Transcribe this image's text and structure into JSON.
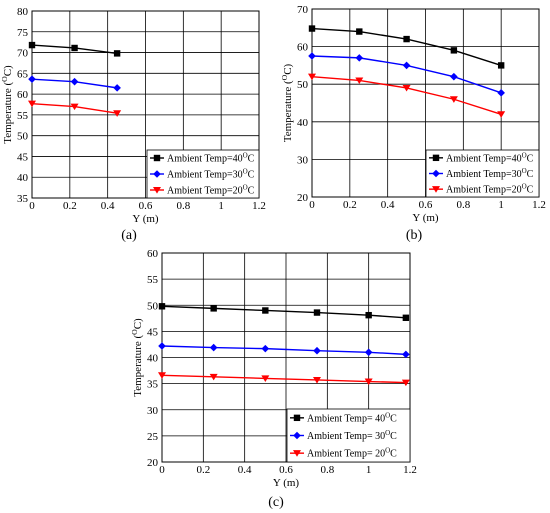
{
  "chart_data": [
    {
      "type": "line",
      "panel_label": "(a)",
      "xlabel": "Y (m)",
      "ylabel": "Temperature (°C)",
      "xlim": [
        0,
        1.2
      ],
      "ylim": [
        35,
        80
      ],
      "xticks": [
        0,
        0.2,
        0.4,
        0.6,
        0.8,
        1,
        1.2
      ],
      "yticks": [
        35,
        40,
        45,
        50,
        55,
        60,
        65,
        70,
        75,
        80
      ],
      "xtick_labels": [
        "0",
        "0.2",
        "0.4",
        "0.6",
        "0.8",
        "1",
        "1.2"
      ],
      "ytick_labels": [
        "35",
        "40",
        "45",
        "50",
        "55",
        "60",
        "65",
        "70",
        "75",
        "80"
      ],
      "grid": true,
      "legend_position": "bottom-right",
      "series": [
        {
          "name": "Ambient Temp=40°C",
          "color": "#000000",
          "marker": "square",
          "x": [
            0,
            0.225,
            0.45
          ],
          "values": [
            71.8,
            71.1,
            69.8
          ]
        },
        {
          "name": "Ambient Temp=30°C",
          "color": "#0000ff",
          "marker": "diamond",
          "x": [
            0,
            0.225,
            0.45
          ],
          "values": [
            63.6,
            63.0,
            61.5
          ]
        },
        {
          "name": "Ambient Temp=20°C",
          "color": "#ff0000",
          "marker": "triangle-down",
          "x": [
            0,
            0.225,
            0.45
          ],
          "values": [
            57.7,
            57.0,
            55.4
          ]
        }
      ]
    },
    {
      "type": "line",
      "panel_label": "(b)",
      "xlabel": "Y (m)",
      "ylabel": "Temperature (°C)",
      "xlim": [
        0,
        1.2
      ],
      "ylim": [
        20,
        70
      ],
      "xticks": [
        0,
        0.2,
        0.4,
        0.6,
        0.8,
        1,
        1.2
      ],
      "yticks": [
        20,
        30,
        40,
        50,
        60,
        70
      ],
      "xtick_labels": [
        "0",
        "0.2",
        "0.4",
        "0.6",
        "0.8",
        "1",
        "1.2"
      ],
      "ytick_labels": [
        "20",
        "30",
        "40",
        "50",
        "60",
        "70"
      ],
      "grid": true,
      "legend_position": "bottom-right",
      "series": [
        {
          "name": "Ambient Temp=40°C",
          "color": "#000000",
          "marker": "square",
          "x": [
            0,
            0.25,
            0.5,
            0.75,
            1.0
          ],
          "values": [
            64.8,
            64.0,
            62.0,
            59.0,
            55.0
          ]
        },
        {
          "name": "Ambient Temp=30°C",
          "color": "#0000ff",
          "marker": "diamond",
          "x": [
            0,
            0.25,
            0.5,
            0.75,
            1.0
          ],
          "values": [
            57.5,
            57.0,
            55.0,
            52.0,
            47.7
          ]
        },
        {
          "name": "Ambient Temp=20°C",
          "color": "#ff0000",
          "marker": "triangle-down",
          "x": [
            0,
            0.25,
            0.5,
            0.75,
            1.0
          ],
          "values": [
            52.0,
            51.0,
            49.0,
            46.0,
            42.0
          ]
        }
      ]
    },
    {
      "type": "line",
      "panel_label": "(c)",
      "xlabel": "Y (m)",
      "ylabel": "Temperature (°C)",
      "xlim": [
        0,
        1.2
      ],
      "ylim": [
        20,
        60
      ],
      "xticks": [
        0,
        0.2,
        0.4,
        0.6,
        0.8,
        1,
        1.2
      ],
      "yticks": [
        20,
        25,
        30,
        35,
        40,
        45,
        50,
        55,
        60
      ],
      "xtick_labels": [
        "0",
        "0.2",
        "0.4",
        "0.6",
        "0.8",
        "1",
        "1.2"
      ],
      "ytick_labels": [
        "20",
        "25",
        "30",
        "35",
        "40",
        "45",
        "50",
        "55",
        "60"
      ],
      "grid": true,
      "legend_position": "bottom-right",
      "series": [
        {
          "name": "Ambient Temp= 40°C",
          "color": "#000000",
          "marker": "square",
          "x": [
            0,
            0.25,
            0.5,
            0.75,
            1.0,
            1.18
          ],
          "values": [
            49.8,
            49.4,
            49.0,
            48.6,
            48.1,
            47.6
          ]
        },
        {
          "name": "Ambient Temp= 30°C",
          "color": "#0000ff",
          "marker": "diamond",
          "x": [
            0,
            0.25,
            0.5,
            0.75,
            1.0,
            1.18
          ],
          "values": [
            42.2,
            41.9,
            41.7,
            41.3,
            41.0,
            40.6
          ]
        },
        {
          "name": "Ambient Temp= 20°C",
          "color": "#ff0000",
          "marker": "triangle-down",
          "x": [
            0,
            0.25,
            0.5,
            0.75,
            1.0,
            1.18
          ],
          "values": [
            36.6,
            36.3,
            36.0,
            35.7,
            35.4,
            35.2
          ]
        }
      ]
    }
  ]
}
